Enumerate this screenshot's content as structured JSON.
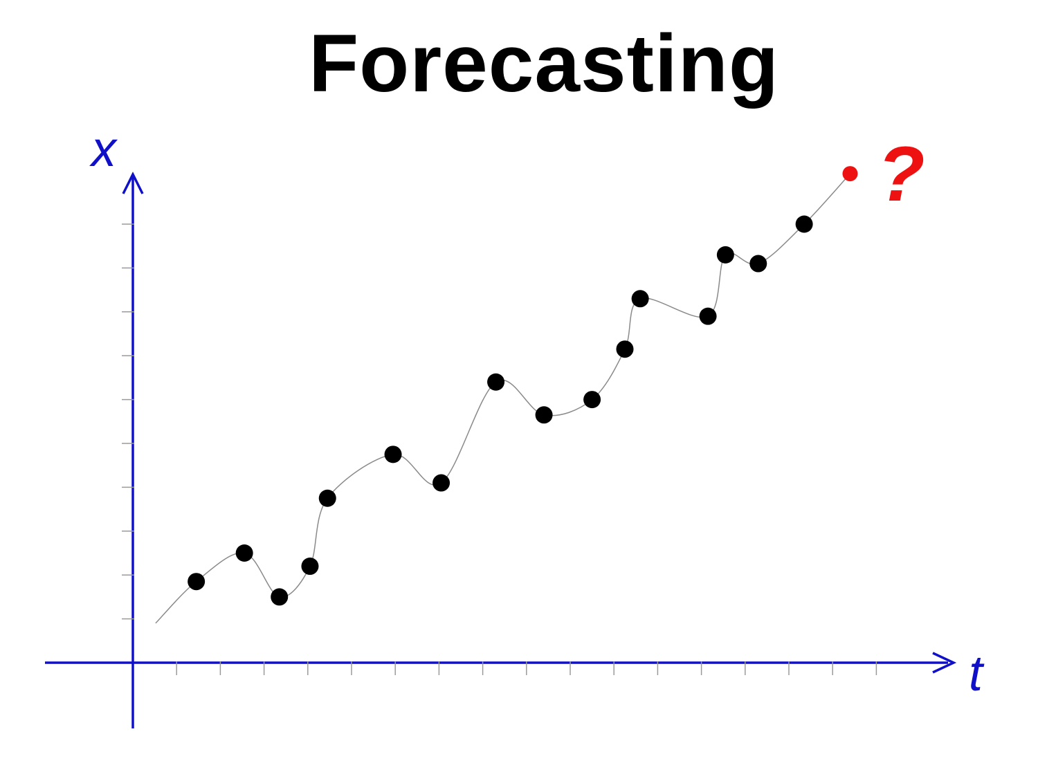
{
  "colors": {
    "axis": "#1010c8",
    "points": "#000000",
    "curve": "#8a8a8a",
    "forecast": "#ee1111",
    "title": "#000000"
  },
  "chart_data": {
    "type": "line",
    "title": "Forecasting",
    "xlabel": "t",
    "ylabel": "x",
    "forecast_label": "?",
    "grid": false,
    "legend": "none",
    "xlim": [
      -2,
      19.4
    ],
    "ylim": [
      -1.5,
      11.4
    ],
    "x_ticks": [
      1,
      2,
      3,
      4,
      5,
      6,
      7,
      8,
      9,
      10,
      11,
      12,
      13,
      14,
      15,
      16,
      17
    ],
    "y_ticks": [
      1,
      2,
      3,
      4,
      5,
      6,
      7,
      8,
      9,
      10
    ],
    "curve_start": {
      "x": 0.52,
      "y": 0.9
    },
    "series": [
      {
        "x": [
          1.45,
          2.55,
          3.35,
          4.05,
          4.45,
          5.95,
          7.05,
          8.3,
          9.4,
          10.5,
          11.25,
          11.6,
          13.15,
          13.55,
          14.3,
          15.35
        ],
        "y": [
          1.85,
          2.5,
          1.5,
          2.2,
          3.75,
          4.75,
          4.1,
          6.4,
          5.65,
          6.0,
          7.15,
          8.3,
          7.9,
          9.3,
          9.1,
          10.0
        ]
      }
    ],
    "forecast": {
      "x": 16.4,
      "y": 11.15
    }
  }
}
